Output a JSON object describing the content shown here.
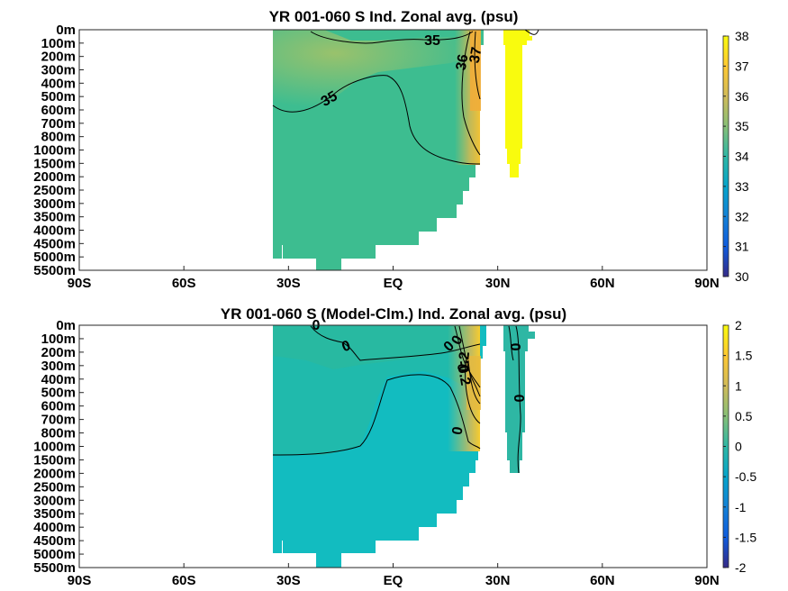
{
  "chart_data": [
    {
      "type": "heatmap",
      "title": "YR 001-060 S Ind. Zonal avg. (psu)",
      "x_ticks": [
        "90S",
        "60S",
        "30S",
        "EQ",
        "30N",
        "60N",
        "90N"
      ],
      "x_values": [
        -90,
        -60,
        -30,
        0,
        30,
        60,
        90
      ],
      "xlim": [
        -90,
        90
      ],
      "y_ticks": [
        "0m",
        "100m",
        "200m",
        "300m",
        "400m",
        "500m",
        "600m",
        "700m",
        "800m",
        "1000m",
        "1500m",
        "2000m",
        "2500m",
        "3000m",
        "3500m",
        "4000m",
        "4500m",
        "5000m",
        "5500m"
      ],
      "y_direction": "depth increasing downward",
      "colorbar": {
        "ticks": [
          "30",
          "31",
          "32",
          "33",
          "34",
          "35",
          "36",
          "37",
          "38"
        ],
        "min": 30,
        "max": 38,
        "colormap": "parula"
      },
      "contour_labels": [
        "35",
        "35",
        "36",
        "37"
      ],
      "field_summary": [
        {
          "region": "upper 500m, 30S-10S",
          "value": 35.6
        },
        {
          "region": "Arabian Sea / Red Sea edge near 25N",
          "value": 36.8
        },
        {
          "region": "Persian Gulf column 30N-35N",
          "value": 38
        },
        {
          "region": "intermediate and deep water",
          "value": 34.7
        },
        {
          "region": "abyss",
          "value": 34.7
        }
      ]
    },
    {
      "type": "heatmap",
      "title": "YR 001-060 S (Model-Clm.) Ind. Zonal avg. (psu)",
      "x_ticks": [
        "90S",
        "60S",
        "30S",
        "EQ",
        "30N",
        "60N",
        "90N"
      ],
      "x_values": [
        -90,
        -60,
        -30,
        0,
        30,
        60,
        90
      ],
      "xlim": [
        -90,
        90
      ],
      "y_ticks": [
        "0m",
        "100m",
        "200m",
        "300m",
        "400m",
        "500m",
        "600m",
        "700m",
        "800m",
        "1000m",
        "1500m",
        "2000m",
        "2500m",
        "3000m",
        "3500m",
        "4000m",
        "4500m",
        "5000m",
        "5500m"
      ],
      "y_direction": "depth increasing downward",
      "colorbar": {
        "ticks": [
          "2",
          "1.5",
          "1",
          "0.5",
          "0",
          "-0.5",
          "-1",
          "-1.5",
          "-2"
        ],
        "min": -2,
        "max": 2,
        "colormap": "parula"
      },
      "contour_labels": [
        "0",
        "0",
        "0",
        "0",
        "0.2",
        "-0.2",
        "0",
        "0"
      ],
      "field_summary": [
        {
          "region": "most of the section",
          "value": -0.2
        },
        {
          "region": "deep water south of 10N",
          "value": -0.3
        },
        {
          "region": "Red Sea outflow near 25N, 300-600m",
          "value": 1.3
        },
        {
          "region": "Persian Gulf column 30N-35N",
          "value": 0
        }
      ]
    }
  ]
}
